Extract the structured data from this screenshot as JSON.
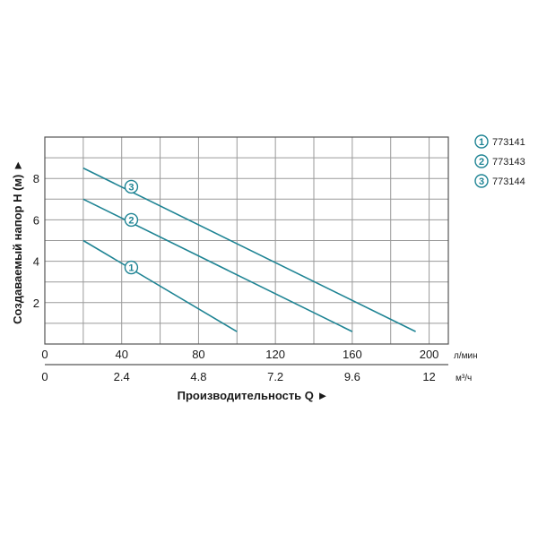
{
  "chart_data": {
    "type": "line",
    "xlabel": "Производительность Q ►",
    "ylabel": "Создаваемый напор H (м) ►",
    "x_unit": "л/мин",
    "x2_unit": "м³/ч",
    "xlim": [
      0,
      210
    ],
    "ylim": [
      0,
      10
    ],
    "x_ticks": [
      {
        "value": 0,
        "label": "0"
      },
      {
        "value": 40,
        "label": "40"
      },
      {
        "value": 80,
        "label": "80"
      },
      {
        "value": 120,
        "label": "120"
      },
      {
        "value": 160,
        "label": "160"
      },
      {
        "value": 200,
        "label": "200"
      }
    ],
    "x2_ticks": [
      {
        "value": 0,
        "label": "0"
      },
      {
        "value": 40,
        "label": "2.4"
      },
      {
        "value": 80,
        "label": "4.8"
      },
      {
        "value": 120,
        "label": "7.2"
      },
      {
        "value": 160,
        "label": "9.6"
      },
      {
        "value": 200,
        "label": "12"
      }
    ],
    "y_ticks": [
      {
        "value": 2,
        "label": "2"
      },
      {
        "value": 4,
        "label": "4"
      },
      {
        "value": 6,
        "label": "6"
      },
      {
        "value": 8,
        "label": "8"
      }
    ],
    "grid": true,
    "legend_position": "right",
    "line_color": "#1f8494",
    "series": [
      {
        "marker": "1",
        "name": "773141",
        "points": [
          [
            20,
            5.0
          ],
          [
            100,
            0.6
          ]
        ],
        "marker_at": [
          45,
          3.7
        ]
      },
      {
        "marker": "2",
        "name": "773143",
        "points": [
          [
            20,
            7.0
          ],
          [
            160,
            0.6
          ]
        ],
        "marker_at": [
          45,
          6.0
        ]
      },
      {
        "marker": "3",
        "name": "773144",
        "points": [
          [
            20,
            8.5
          ],
          [
            193,
            0.6
          ]
        ],
        "marker_at": [
          45,
          7.6
        ]
      }
    ]
  }
}
